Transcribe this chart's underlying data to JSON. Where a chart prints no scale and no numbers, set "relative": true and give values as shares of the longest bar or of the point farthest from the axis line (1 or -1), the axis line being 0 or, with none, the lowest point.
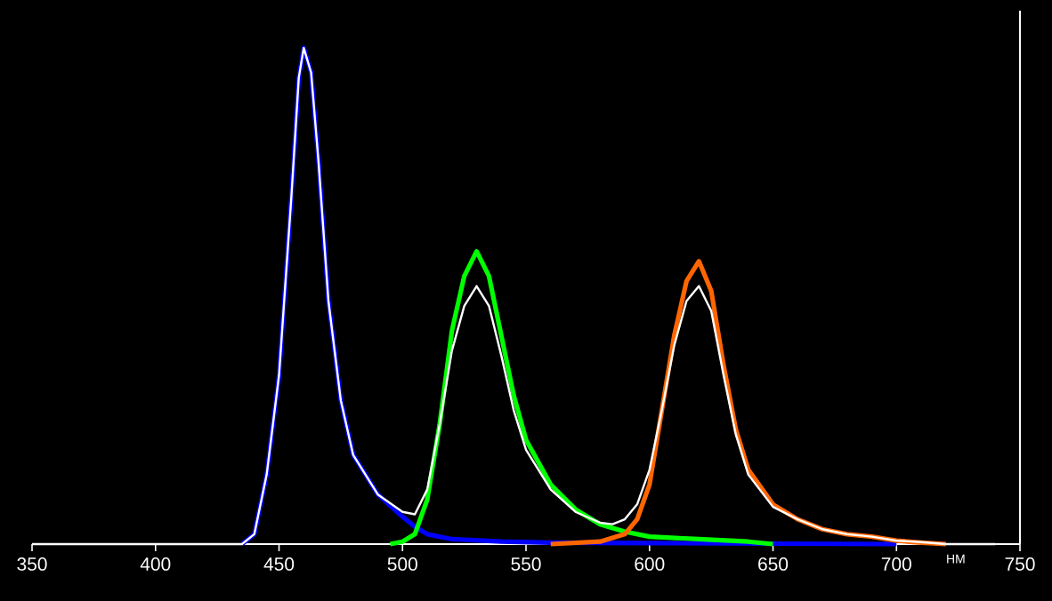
{
  "chart_data": {
    "type": "line",
    "relative": true,
    "xlabel": "НМ",
    "xlim": [
      350,
      750
    ],
    "xticks": [
      350,
      400,
      450,
      500,
      550,
      600,
      650,
      700,
      750
    ],
    "grid": false,
    "marker": "none",
    "line_style": "solid",
    "series": [
      {
        "color": "#0000ff",
        "x": [
          435,
          440,
          445,
          450,
          455,
          458,
          460,
          463,
          466,
          470,
          475,
          480,
          490,
          500,
          505,
          510,
          520,
          540,
          560,
          600,
          700
        ],
        "values": [
          0,
          0.02,
          0.14,
          0.34,
          0.7,
          0.94,
          1.0,
          0.95,
          0.77,
          0.49,
          0.29,
          0.18,
          0.1,
          0.055,
          0.035,
          0.02,
          0.01,
          0.005,
          0.003,
          0.002,
          0
        ]
      },
      {
        "color": "#00ff00",
        "x": [
          495,
          500,
          505,
          510,
          515,
          520,
          525,
          530,
          535,
          540,
          545,
          550,
          560,
          570,
          580,
          590,
          600,
          620,
          640,
          650
        ],
        "values": [
          0,
          0.005,
          0.02,
          0.09,
          0.24,
          0.43,
          0.54,
          0.59,
          0.54,
          0.42,
          0.3,
          0.21,
          0.12,
          0.07,
          0.04,
          0.025,
          0.015,
          0.01,
          0.005,
          0
        ]
      },
      {
        "color": "#ff6600",
        "x": [
          560,
          580,
          590,
          595,
          600,
          605,
          610,
          615,
          620,
          625,
          630,
          635,
          640,
          650,
          660,
          670,
          680,
          690,
          700,
          710,
          720
        ],
        "values": [
          0,
          0.005,
          0.02,
          0.05,
          0.12,
          0.27,
          0.42,
          0.53,
          0.57,
          0.51,
          0.36,
          0.23,
          0.15,
          0.08,
          0.05,
          0.03,
          0.02,
          0.015,
          0.007,
          0.003,
          0
        ]
      },
      {
        "color": "#ffffff",
        "x": [
          350,
          435,
          440,
          445,
          450,
          455,
          458,
          460,
          463,
          466,
          470,
          475,
          480,
          490,
          500,
          505,
          510,
          515,
          520,
          525,
          530,
          535,
          540,
          545,
          550,
          560,
          570,
          580,
          585,
          590,
          595,
          600,
          605,
          610,
          615,
          620,
          625,
          630,
          635,
          640,
          650,
          660,
          670,
          680,
          690,
          700,
          710,
          720,
          740
        ],
        "values": [
          0,
          0,
          0.02,
          0.14,
          0.34,
          0.7,
          0.94,
          1.0,
          0.95,
          0.77,
          0.49,
          0.29,
          0.18,
          0.1,
          0.065,
          0.06,
          0.11,
          0.24,
          0.39,
          0.48,
          0.52,
          0.48,
          0.38,
          0.27,
          0.19,
          0.11,
          0.065,
          0.043,
          0.04,
          0.05,
          0.08,
          0.15,
          0.27,
          0.4,
          0.49,
          0.52,
          0.47,
          0.34,
          0.22,
          0.14,
          0.075,
          0.05,
          0.03,
          0.02,
          0.015,
          0.007,
          0.004,
          0,
          0
        ]
      }
    ]
  }
}
